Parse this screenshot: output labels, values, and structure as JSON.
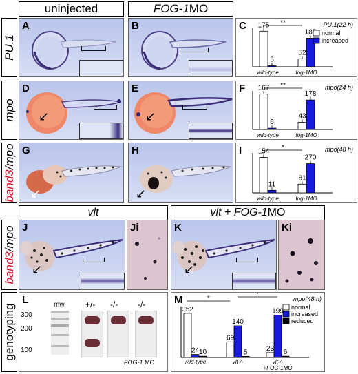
{
  "headers": {
    "uninjected": "uninjected",
    "fog1mo_gene": "FOG-1",
    "fog1mo_suffix": "MO",
    "vlt": "vlt",
    "vlt_fog_prefix": "vlt + ",
    "vlt_fog_gene": "FOG-1",
    "vlt_fog_suffix": "MO"
  },
  "row_labels": {
    "pu1": "PU.1",
    "mpo": "mpo",
    "band3": "band3",
    "sep": "/",
    "mpo2": "mpo",
    "band3b": "band3",
    "sep2": "/",
    "mpo3": "mpo",
    "genotyping": "genotyping"
  },
  "panel_letters": {
    "A": "A",
    "B": "B",
    "C": "C",
    "D": "D",
    "E": "E",
    "F": "F",
    "G": "G",
    "H": "H",
    "I": "I",
    "J": "J",
    "Ji": "Ji",
    "K": "K",
    "Ki": "Ki",
    "L": "L",
    "M": "M"
  },
  "gel": {
    "marker_label": "mw",
    "lanes": [
      "+/-",
      "-/-",
      "-/-"
    ],
    "lane3_note_gene": "FOG-1",
    "lane3_note_suffix": " MO",
    "ticks": [
      "300",
      "200",
      "100"
    ]
  },
  "colors": {
    "normal": "#ffffff",
    "increased": "#1a1adc",
    "reduced": "#000000",
    "embryo_bg": "#c3cdee",
    "red_label": "#d3102a"
  },
  "chart_data": [
    {
      "type": "bar",
      "panel": "C",
      "title": "PU.1(22 h)",
      "categories": [
        "wild-type",
        "fog-1MO"
      ],
      "series": [
        {
          "name": "normal",
          "values": [
            175,
            52
          ]
        },
        {
          "name": "increased",
          "values": [
            5,
            185
          ]
        }
      ],
      "sig": "**"
    },
    {
      "type": "bar",
      "panel": "F",
      "title": "mpo(24 h)",
      "categories": [
        "wild-type",
        "fog-1MO"
      ],
      "series": [
        {
          "name": "normal",
          "values": [
            167,
            43
          ]
        },
        {
          "name": "increased",
          "values": [
            6,
            178
          ]
        }
      ],
      "sig": "**"
    },
    {
      "type": "bar",
      "panel": "I",
      "title": "mpo(48 h)",
      "categories": [
        "wild-type",
        "fog-1MO"
      ],
      "series": [
        {
          "name": "normal",
          "values": [
            154,
            81
          ]
        },
        {
          "name": "increased",
          "values": [
            11,
            270
          ]
        }
      ],
      "sig": "*"
    },
    {
      "type": "bar",
      "panel": "M",
      "title": "mpo(48 h)",
      "categories": [
        "wild-type",
        "vlt-/-",
        "vlt-/-\n+FOG-1MO"
      ],
      "series": [
        {
          "name": "normal",
          "values": [
            352,
            69,
            23
          ]
        },
        {
          "name": "increased",
          "values": [
            24,
            140,
            199
          ]
        },
        {
          "name": "reduced",
          "values": [
            10,
            5,
            6
          ]
        }
      ],
      "sig": [
        "*",
        "*"
      ]
    }
  ],
  "legend_c": [
    "normal",
    "increased"
  ],
  "legend_m": [
    "normal",
    "increased",
    "reduced"
  ]
}
